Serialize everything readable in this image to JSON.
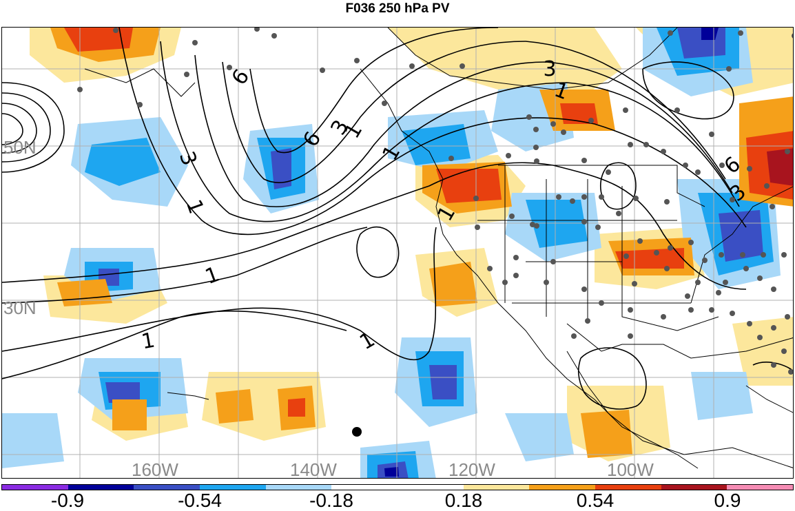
{
  "title": "F036 250 hPa PV",
  "map": {
    "lat_labels": [
      "50N",
      "30N"
    ],
    "lon_labels": [
      "160W",
      "140W",
      "120W",
      "100W"
    ],
    "contour_labels": [
      "6",
      "6",
      "3",
      "3",
      "1",
      "1",
      "1",
      "1",
      "1",
      "1",
      "3",
      "1",
      "6",
      "3",
      "1"
    ]
  },
  "colorbar": {
    "colors": [
      "#8a2be2",
      "#000099",
      "#3a4fc4",
      "#1ea6f0",
      "#a8d8f8",
      "#ffffff",
      "#ffffff",
      "#fce79c",
      "#f5a01a",
      "#e8400f",
      "#a8141e",
      "#f58cb4"
    ],
    "labels": [
      "-0.9",
      "-0.54",
      "-0.18",
      "0.18",
      "0.54",
      "0.9"
    ]
  }
}
